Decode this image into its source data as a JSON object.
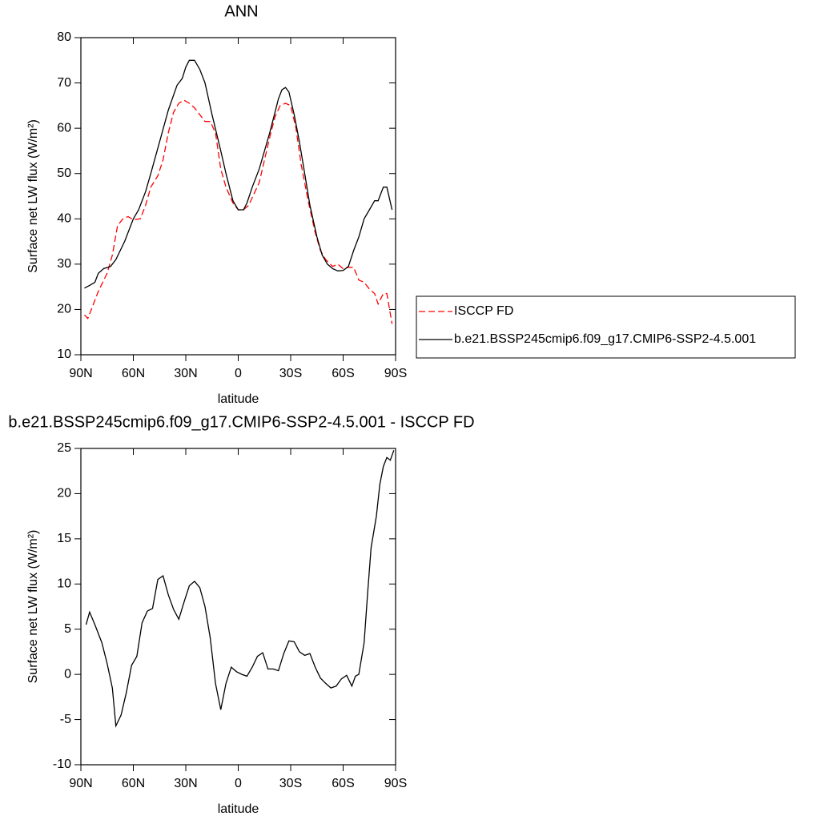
{
  "chart_data": [
    {
      "type": "line",
      "title": "ANN",
      "xlabel": "latitude",
      "ylabel": "Surface net LW flux (W/m²)",
      "xlim": [
        90,
        -90
      ],
      "ylim": [
        10,
        80
      ],
      "xticks": [
        {
          "value": 90,
          "label": "90N"
        },
        {
          "value": 60,
          "label": "60N"
        },
        {
          "value": 30,
          "label": "30N"
        },
        0,
        {
          "value": -30,
          "label": "30S"
        },
        {
          "value": -60,
          "label": "60S"
        },
        {
          "value": -90,
          "label": "90S"
        }
      ],
      "yticks": [
        10,
        20,
        30,
        40,
        50,
        60,
        70,
        80
      ],
      "legend": "right",
      "series": [
        {
          "name": "ISCCP FD",
          "color": "#ff0000",
          "dashed": true,
          "x": [
            88,
            86,
            84,
            80,
            75,
            72,
            69,
            66,
            63,
            60,
            56,
            53,
            50,
            46,
            43,
            40,
            37,
            34,
            31,
            28,
            25,
            22,
            19,
            16,
            13,
            10,
            7,
            3,
            0,
            -3,
            -6,
            -9,
            -12,
            -15,
            -18,
            -21,
            -24,
            -27,
            -30,
            -33,
            -36,
            -40,
            -44,
            -47,
            -50,
            -54,
            -57,
            -60,
            -63,
            -66,
            -69,
            -72,
            -75,
            -78,
            -80,
            -83,
            -85,
            -88
          ],
          "values": [
            18.8,
            18,
            20,
            24,
            28,
            32,
            38.5,
            40,
            40.5,
            39.8,
            40,
            43,
            47,
            49.5,
            53,
            59,
            63.5,
            65.5,
            66.2,
            65.5,
            64.5,
            63,
            61.5,
            61.5,
            59,
            51,
            47,
            43.5,
            42,
            42,
            43,
            45.5,
            48,
            53,
            58,
            62.5,
            65,
            65.5,
            65,
            60,
            52,
            44,
            37,
            33,
            31,
            29.5,
            30,
            29,
            29.3,
            29.3,
            26.5,
            26,
            24.5,
            23.5,
            21.2,
            23.5,
            23.5,
            16.8
          ]
        },
        {
          "name": "b.e21.BSSP245cmip6.f09_g17.CMIP6-SSP2-4.5.001",
          "color": "#000000",
          "dashed": false,
          "x": [
            88,
            85,
            82,
            80,
            77,
            73,
            70,
            65,
            60,
            57,
            53,
            50,
            45,
            40,
            35,
            32,
            30,
            28,
            25,
            22,
            19,
            15,
            10,
            7,
            3,
            0,
            -3,
            -5,
            -8,
            -12,
            -15,
            -18,
            -21,
            -23,
            -25,
            -27,
            -29,
            -32,
            -35,
            -38,
            -41,
            -45,
            -48,
            -51,
            -54,
            -57,
            -60,
            -63,
            -66,
            -69,
            -72,
            -75,
            -78,
            -80,
            -83,
            -85,
            -88
          ],
          "values": [
            24.7,
            25.3,
            26,
            28,
            29,
            29.5,
            31,
            35,
            40,
            42,
            46,
            50,
            57,
            64,
            69.5,
            71,
            73.5,
            75,
            75,
            73,
            70,
            63,
            55,
            50,
            44,
            42,
            42,
            43.5,
            47,
            51,
            55,
            59,
            63.5,
            66.5,
            68.5,
            69,
            68,
            63,
            57,
            50,
            43,
            36,
            32,
            30,
            29,
            28.5,
            28.6,
            29.5,
            33,
            36,
            40,
            42,
            44,
            44,
            47,
            47,
            42
          ]
        }
      ]
    },
    {
      "type": "line",
      "title": "b.e21.BSSP245cmip6.f09_g17.CMIP6-SSP2-4.5.001 - ISCCP FD",
      "xlabel": "latitude",
      "ylabel": "Surface net LW flux (W/m²)",
      "xlim": [
        90,
        -90
      ],
      "ylim": [
        -10,
        25
      ],
      "xticks": [
        {
          "value": 90,
          "label": "90N"
        },
        {
          "value": 60,
          "label": "60N"
        },
        {
          "value": 30,
          "label": "30N"
        },
        0,
        {
          "value": -30,
          "label": "30S"
        },
        {
          "value": -60,
          "label": "60S"
        },
        {
          "value": -90,
          "label": "90S"
        }
      ],
      "yticks": [
        -10,
        -5,
        0,
        5,
        10,
        15,
        20,
        25
      ],
      "color": "#000000",
      "x": [
        87,
        85,
        82,
        78,
        75,
        72,
        70,
        67,
        64,
        61,
        58,
        55,
        52,
        49,
        46,
        43,
        40,
        37,
        34,
        31,
        28,
        25,
        22,
        19,
        16,
        13,
        10,
        7,
        4,
        1,
        -2,
        -5,
        -8,
        -11,
        -14,
        -17,
        -20,
        -23,
        -26,
        -29,
        -32,
        -35,
        -38,
        -41,
        -44,
        -47,
        -50,
        -53,
        -56,
        -59,
        -62,
        -65,
        -67,
        -69,
        -72,
        -74,
        -76,
        -79,
        -81,
        -83,
        -85,
        -87,
        -89
      ],
      "values": [
        5.5,
        6.9,
        5.5,
        3.5,
        1.2,
        -1.5,
        -5.7,
        -4.5,
        -2,
        1,
        2,
        5.7,
        7,
        7.3,
        10.5,
        10.9,
        8.8,
        7.2,
        6.1,
        8,
        9.8,
        10.3,
        9.6,
        7.5,
        4,
        -1,
        -3.9,
        -1,
        0.8,
        0.3,
        0,
        -0.2,
        0.8,
        2,
        2.4,
        0.6,
        0.6,
        0.4,
        2.3,
        3.7,
        3.6,
        2.5,
        2.1,
        2.3,
        0.8,
        -0.4,
        -1,
        -1.5,
        -1.3,
        -0.5,
        -0.1,
        -1.3,
        -0.2,
        0,
        3.5,
        9,
        14,
        17.5,
        21,
        23,
        24,
        23.7,
        24.8
      ]
    }
  ]
}
